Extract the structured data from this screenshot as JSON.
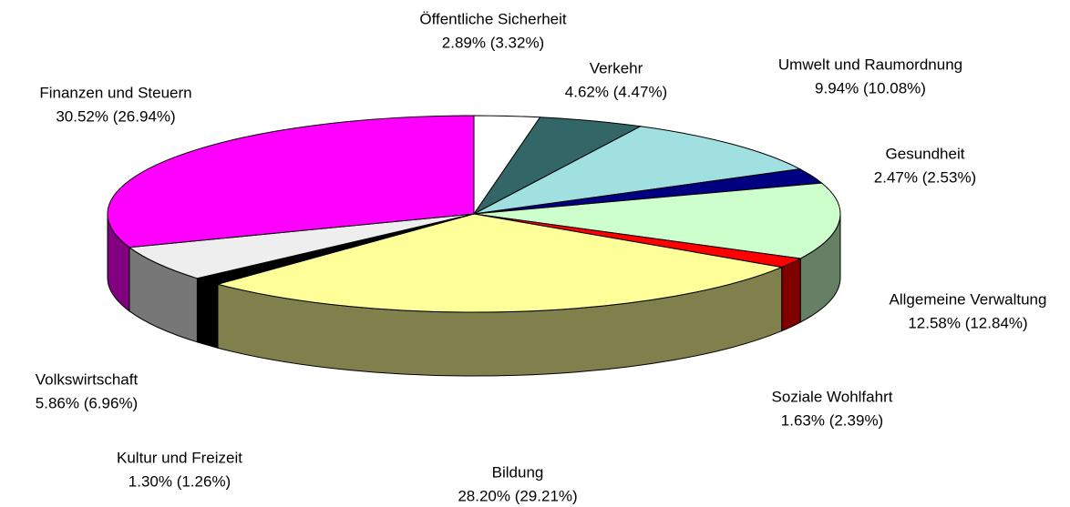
{
  "chart_data": {
    "type": "pie3d",
    "categories": [
      "Öffentliche Sicherheit",
      "Verkehr",
      "Umwelt und Raumordnung",
      "Gesundheit",
      "Allgemeine Verwaltung",
      "Soziale Wohlfahrt",
      "Bildung",
      "Kultur und Freizeit",
      "Volkswirtschaft",
      "Finanzen und Steuern"
    ],
    "values": [
      2.89,
      4.62,
      9.94,
      2.47,
      12.58,
      1.63,
      28.2,
      1.3,
      5.86,
      30.52
    ],
    "value_labels": [
      "2.89% (3.32%)",
      "4.62% (4.47%)",
      "9.94% (10.08%)",
      "2.47% (2.53%)",
      "12.58% (12.84%)",
      "1.63% (2.39%)",
      "28.20% (29.21%)",
      "1.30% (1.26%)",
      "5.86% (6.96%)",
      "30.52% (26.94%)"
    ],
    "colors": [
      "#ffffff",
      "#336666",
      "#a0e0e0",
      "#000080",
      "#ccffcc",
      "#ff0000",
      "#ffff99",
      "#000000",
      "#eeeeee",
      "#ff00ff"
    ]
  }
}
